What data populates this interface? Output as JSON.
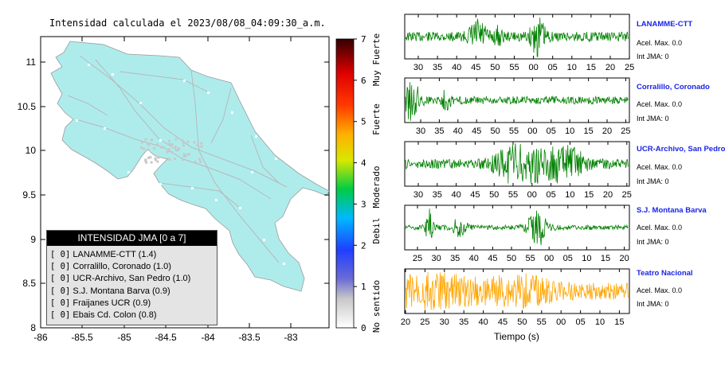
{
  "map": {
    "title": "Intensidad calculada el 2023/08/08_04:09:30_a.m.",
    "x_ticks": [
      "-86",
      "-85.5",
      "-85",
      "-84.5",
      "-84",
      "-83.5",
      "-83"
    ],
    "y_ticks": [
      "11",
      "10.5",
      "10",
      "9.5",
      "9",
      "8.5",
      "8"
    ],
    "land_color": "#aeecec"
  },
  "colorbar": {
    "ticks": [
      "7",
      "6",
      "5",
      "4",
      "3",
      "2",
      "1",
      "0"
    ],
    "labels": [
      "Muy Fuerte",
      "Fuerte",
      "Moderado",
      "Debil",
      "No sentido"
    ]
  },
  "legend": {
    "title": "INTENSIDAD JMA [0 a 7]",
    "items": [
      {
        "tag": "[ 0]",
        "text": "LANAMME-CTT (1.4)"
      },
      {
        "tag": "[ 0]",
        "text": "Corralillo, Coronado (1.0)"
      },
      {
        "tag": "[ 0]",
        "text": "UCR-Archivo, San Pedro (1.0)"
      },
      {
        "tag": "[ 0]",
        "text": "S.J. Montana Barva (0.9)"
      },
      {
        "tag": "[ 0]",
        "text": "Fraijanes UCR (0.9)"
      },
      {
        "tag": "[ 0]",
        "text": "Ebais Cd. Colon (0.8)"
      }
    ]
  },
  "stations": [
    {
      "name": "LANAMME-CTT",
      "acel": "Acel. Max. 0.0",
      "int": "Int JMA: 0",
      "color": "#008000",
      "ticks": [
        "30",
        "35",
        "40",
        "45",
        "50",
        "55",
        "00",
        "05",
        "10",
        "15",
        "20",
        "25"
      ]
    },
    {
      "name": "Corralillo, Coronado",
      "acel": "Acel. Max. 0.0",
      "int": "Int JMA: 0",
      "color": "#008000",
      "ticks": [
        "30",
        "35",
        "40",
        "45",
        "50",
        "55",
        "00",
        "05",
        "10",
        "15",
        "20",
        "25"
      ]
    },
    {
      "name": "UCR-Archivo, San Pedro",
      "acel": "Acel. Max. 0.0",
      "int": "Int JMA: 0",
      "color": "#008000",
      "ticks": [
        "30",
        "35",
        "40",
        "45",
        "50",
        "55",
        "00",
        "05",
        "10",
        "15",
        "20",
        "25"
      ]
    },
    {
      "name": "S.J. Montana Barva",
      "acel": "Acel. Max. 0.0",
      "int": "Int JMA: 0",
      "color": "#008000",
      "ticks": [
        "25",
        "30",
        "35",
        "40",
        "45",
        "50",
        "55",
        "00",
        "05",
        "10",
        "15",
        "20"
      ]
    },
    {
      "name": "Teatro Nacional",
      "acel": "Acel. Max. 0.0",
      "int": "Int JMA: 0",
      "color": "#ffa500",
      "ticks": [
        "20",
        "25",
        "30",
        "35",
        "40",
        "45",
        "50",
        "55",
        "00",
        "05",
        "10",
        "15"
      ]
    }
  ],
  "xlabel": "Tiempo (s)",
  "chart_data": [
    {
      "type": "heatmap",
      "title": "Intensidad calculada el 2023/08/08_04:09:30_a.m.",
      "xlim": [
        -86,
        -82.5
      ],
      "ylim": [
        8,
        11.3
      ],
      "colorbar_range": [
        0,
        7
      ],
      "legend_placement": "bottom-left"
    },
    {
      "type": "line",
      "series": [
        {
          "name": "LANAMME-CTT"
        },
        {
          "name": "Corralillo, Coronado"
        },
        {
          "name": "UCR-Archivo, San Pedro"
        },
        {
          "name": "S.J. Montana Barva"
        },
        {
          "name": "Teatro Nacional"
        }
      ],
      "xlabel": "Tiempo (s)"
    }
  ]
}
